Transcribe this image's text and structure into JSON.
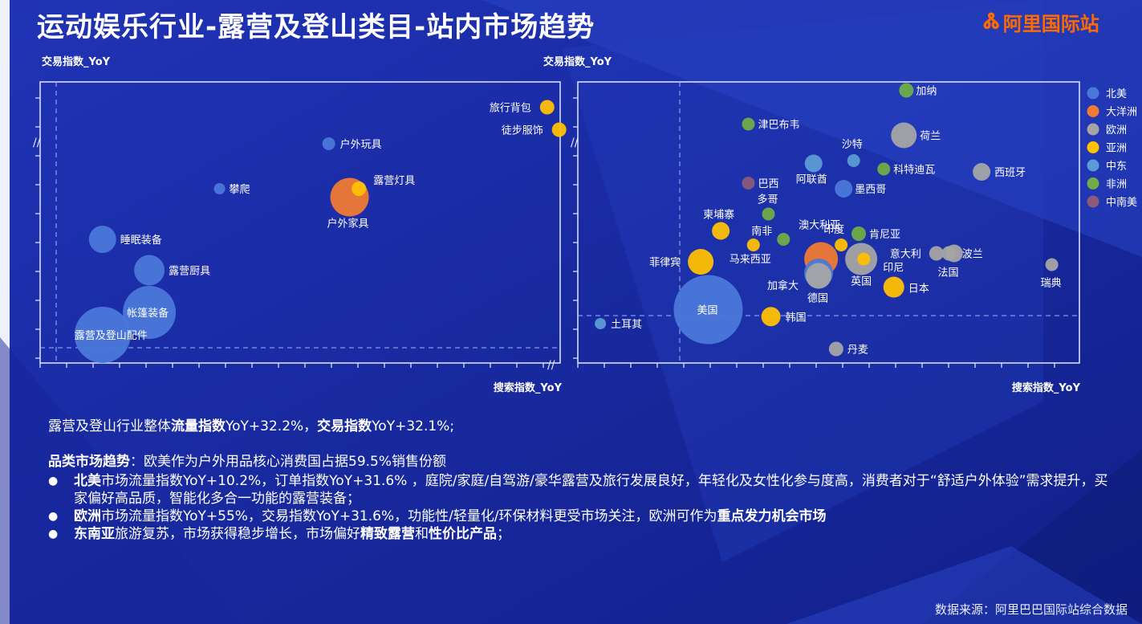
{
  "header": {
    "title": "运动娱乐行业-露营及登山类目-站内市场趋势",
    "brand": "阿里国际站"
  },
  "summary": {
    "line1_prefix": "露营及登山行业整体",
    "line1_bold1": "流量指数",
    "line1_mid": "YoY+32.2%，",
    "line1_bold2": "交易指数",
    "line1_suffix": "YoY+32.1%;",
    "trend_bold": "品类市场趋势",
    "trend_text": "：欧美作为户外用品核心消费国占据59.5%销售份额",
    "bullet1_bold": "北美",
    "bullet1_text": "市场流量指数YoY+10.2%，订单指数YoY+31.6% ，庭院/家庭/自驾游/豪华露营及旅行发展良好，年轻化及女性化参与度高，消费者对于“舒适户外体验”需求提升，买家偏好高品质，智能化多合一功能的露营装备；",
    "bullet2_bold": "欧洲",
    "bullet2_text": "市场流量指数YoY+55%，交易指数YoY+31.6%，功能性/轻量化/环保材料更受市场关注，欧洲可作为",
    "bullet2_bold2": "重点发力机会市场",
    "bullet3_bold": "东南亚",
    "bullet3_text": "旅游复苏，市场获得稳步增长，市场偏好",
    "bullet3_bold2": "精致露营",
    "bullet3_mid": "和",
    "bullet3_bold3": "性价比产品",
    "bullet3_end": "；"
  },
  "footer": {
    "source": "数据来源：阿里巴巴国际站综合数据"
  },
  "colors": {
    "北美": "#4a78d8",
    "大洋洲": "#ef7a33",
    "欧洲": "#a5a5a5",
    "亚洲": "#ffc000",
    "中东": "#5b9bd5",
    "非洲": "#70ad47",
    "中南美": "#8c5a7a"
  },
  "chart_data": [
    {
      "type": "scatter",
      "name": "category-bubbles",
      "xlabel": "搜索指数_YoY",
      "ylabel": "交易指数_YoY",
      "xlim": [
        0,
        100
      ],
      "ylim": [
        0,
        100
      ],
      "points": [
        {
          "label": "旅行背包",
          "x": 97.5,
          "y": 91,
          "size": 9,
          "region": "亚洲"
        },
        {
          "label": "徒步服饰",
          "x": 99.8,
          "y": 83,
          "size": 9,
          "region": "亚洲"
        },
        {
          "label": "户外玩具",
          "x": 55.5,
          "y": 78,
          "size": 8,
          "region": "北美"
        },
        {
          "label": "攀爬",
          "x": 34.5,
          "y": 62,
          "size": 7,
          "region": "北美"
        },
        {
          "label": "户外家具",
          "x": 59.5,
          "y": 59,
          "size": 24,
          "region": "大洋洲"
        },
        {
          "label": "露营灯具",
          "x": 61.3,
          "y": 62,
          "size": 9,
          "region": "亚洲"
        },
        {
          "label": "睡眠装备",
          "x": 12,
          "y": 44,
          "size": 17,
          "region": "北美"
        },
        {
          "label": "露营厨具",
          "x": 21,
          "y": 33,
          "size": 19,
          "region": "北美"
        },
        {
          "label": "帐篷装备",
          "x": 21,
          "y": 18,
          "size": 33,
          "region": "北美"
        },
        {
          "label": "露营及登山配件",
          "x": 12,
          "y": 10,
          "size": 35,
          "region": "北美"
        }
      ]
    },
    {
      "type": "scatter",
      "name": "country-bubbles",
      "xlabel": "搜索指数_YoY",
      "ylabel": "交易指数_YoY",
      "xlim": [
        0,
        100
      ],
      "ylim": [
        0,
        100
      ],
      "legend": [
        "北美",
        "大洋洲",
        "欧洲",
        "亚洲",
        "中东",
        "非洲",
        "中南美"
      ],
      "legend_position": "right",
      "points": [
        {
          "label": "加纳",
          "x": 65.5,
          "y": 97,
          "size": 9,
          "region": "非洲"
        },
        {
          "label": "津巴布韦",
          "x": 34,
          "y": 85,
          "size": 8,
          "region": "非洲"
        },
        {
          "label": "荷兰",
          "x": 65,
          "y": 81,
          "size": 16,
          "region": "欧洲"
        },
        {
          "label": "沙特",
          "x": 55,
          "y": 72,
          "size": 8,
          "region": "中东"
        },
        {
          "label": "阿联酋",
          "x": 47,
          "y": 71,
          "size": 11,
          "region": "中东"
        },
        {
          "label": "科特迪瓦",
          "x": 61,
          "y": 69,
          "size": 8,
          "region": "非洲"
        },
        {
          "label": "西班牙",
          "x": 80.5,
          "y": 68,
          "size": 11,
          "region": "欧洲"
        },
        {
          "label": "巴西",
          "x": 34,
          "y": 64,
          "size": 8,
          "region": "中南美"
        },
        {
          "label": "墨西哥",
          "x": 53,
          "y": 62,
          "size": 11,
          "region": "北美"
        },
        {
          "label": "多哥",
          "x": 38,
          "y": 53,
          "size": 8,
          "region": "非洲"
        },
        {
          "label": "柬埔寨",
          "x": 28.5,
          "y": 47,
          "size": 11,
          "region": "亚洲"
        },
        {
          "label": "南非",
          "x": 41,
          "y": 44,
          "size": 8,
          "region": "非洲"
        },
        {
          "label": "澳大利亚",
          "x": 48.5,
          "y": 37,
          "size": 21,
          "region": "大洋洲"
        },
        {
          "label": "印度",
          "x": 52.5,
          "y": 42,
          "size": 8,
          "region": "亚洲"
        },
        {
          "label": "肯尼亚",
          "x": 56,
          "y": 46,
          "size": 9,
          "region": "非洲"
        },
        {
          "label": "马来西亚",
          "x": 35,
          "y": 42,
          "size": 8,
          "region": "亚洲"
        },
        {
          "label": "菲律宾",
          "x": 24.5,
          "y": 36,
          "size": 16,
          "region": "亚洲"
        },
        {
          "label": "加拿大",
          "x": 48,
          "y": 32,
          "size": 18,
          "region": "北美"
        },
        {
          "label": "德国",
          "x": 48,
          "y": 31,
          "size": 16,
          "region": "欧洲"
        },
        {
          "label": "英国",
          "x": 56.5,
          "y": 37,
          "size": 20,
          "region": "欧洲"
        },
        {
          "label": "印尼",
          "x": 57,
          "y": 37,
          "size": 8,
          "region": "亚洲"
        },
        {
          "label": "意大利",
          "x": 71.5,
          "y": 39,
          "size": 9,
          "region": "欧洲"
        },
        {
          "label": "波兰",
          "x": 75,
          "y": 39,
          "size": 11,
          "region": "欧洲"
        },
        {
          "label": "法国",
          "x": 74,
          "y": 39,
          "size": 9,
          "region": "欧洲"
        },
        {
          "label": "日本",
          "x": 63,
          "y": 27,
          "size": 13,
          "region": "亚洲"
        },
        {
          "label": "瑞典",
          "x": 94.5,
          "y": 35,
          "size": 8,
          "region": "欧洲"
        },
        {
          "label": "美国",
          "x": 26,
          "y": 19,
          "size": 43,
          "region": "北美"
        },
        {
          "label": "韩国",
          "x": 38.5,
          "y": 16.5,
          "size": 12,
          "region": "亚洲"
        },
        {
          "label": "土耳其",
          "x": 4.5,
          "y": 14,
          "size": 7,
          "region": "中东"
        },
        {
          "label": "丹麦",
          "x": 51.5,
          "y": 5,
          "size": 9,
          "region": "欧洲"
        }
      ]
    }
  ]
}
